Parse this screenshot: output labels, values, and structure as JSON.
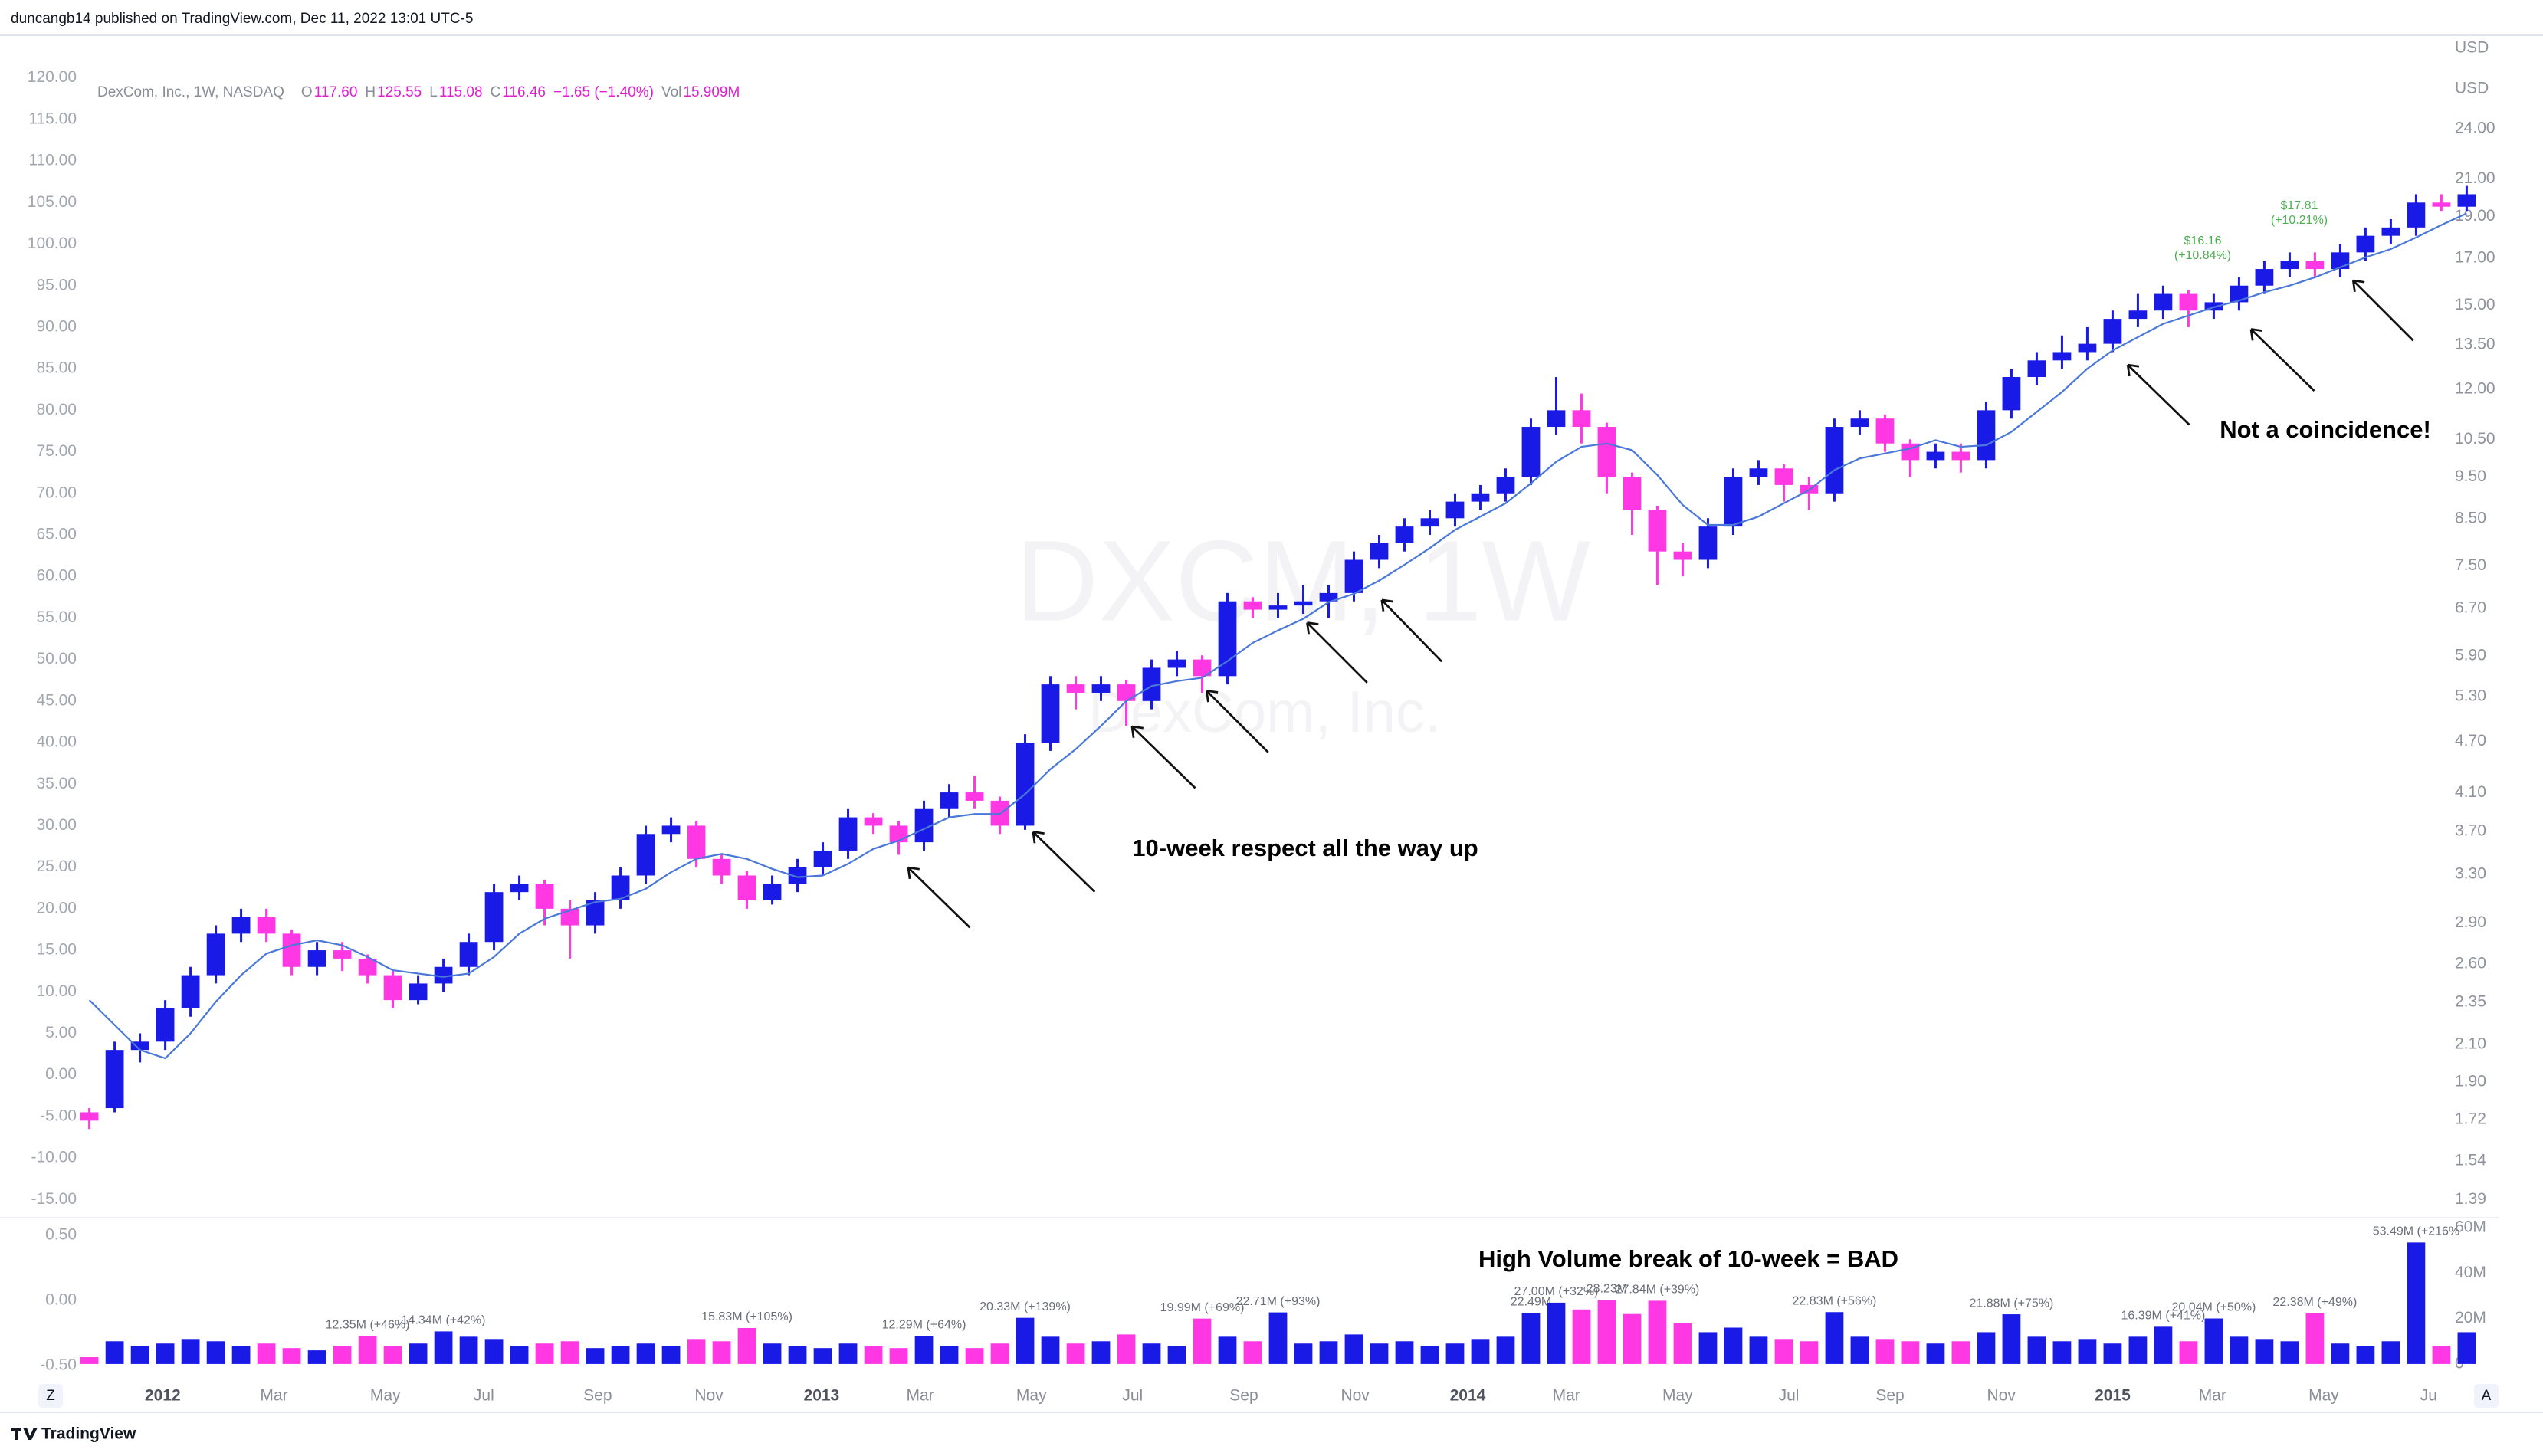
{
  "header": {
    "text": "duncangb14 published on TradingView.com, Dec 11, 2022 13:01 UTC-5"
  },
  "footer": {
    "brand": "TradingView"
  },
  "controls": [
    "Z",
    "A"
  ],
  "chart_data": [
    {
      "type": "candlestick",
      "title": "DexCom, Inc., 1W, NASDAQ",
      "legend": [
        {
          "key": "O",
          "text": "117.60"
        },
        {
          "key": "H",
          "text": "125.55"
        },
        {
          "key": "L",
          "text": "115.08"
        },
        {
          "key": "C",
          "text": "116.46"
        },
        {
          "text": "−1.65 (−1.40%)"
        },
        {
          "key": "Vol",
          "text": "15.909M"
        }
      ],
      "watermark": [
        "DXCM, 1W",
        "DexCom, Inc."
      ],
      "annotations": [
        "10-week respect all the way up",
        "Not a coincidence!"
      ],
      "price_labels": [
        {
          "text": "$16.16",
          "sub": "(+10.84%)"
        },
        {
          "text": "$17.81",
          "sub": "(+10.21%)"
        }
      ],
      "y2_unit_labels": [
        "USD",
        "USD"
      ],
      "up_color": "#1a1ae6",
      "down_color": "#ff38e4",
      "x": [
        0,
        2,
        4,
        6,
        8,
        10,
        12,
        14,
        16,
        18,
        20,
        22,
        24,
        26,
        28,
        30,
        32,
        34,
        36,
        38,
        40,
        42,
        44,
        46,
        48,
        50,
        52,
        54,
        56,
        58,
        60,
        62,
        64,
        66,
        68,
        70,
        72,
        74,
        76,
        78,
        80,
        82,
        84,
        86,
        88,
        90,
        92,
        94,
        96,
        98,
        100,
        102,
        104,
        106,
        108,
        110,
        112,
        114,
        116,
        118,
        120,
        122,
        124,
        126,
        128,
        130,
        132,
        134,
        136,
        138,
        140,
        142,
        144,
        146,
        148,
        150,
        152,
        154,
        156,
        158,
        160,
        162,
        164,
        166,
        168,
        170,
        172,
        174,
        176,
        178,
        180,
        182,
        184,
        186,
        188
      ],
      "open": [
        -4.5,
        -4,
        3,
        4,
        8,
        12,
        17,
        19,
        17,
        13,
        15,
        14,
        12,
        9,
        11,
        13,
        16,
        22,
        23,
        20,
        18,
        21,
        24,
        29,
        30,
        26,
        24,
        21,
        23,
        25,
        27,
        31,
        30,
        28,
        32,
        34,
        33,
        30,
        40,
        47,
        46,
        47,
        45,
        49,
        50,
        48,
        57,
        56,
        56.5,
        57,
        58,
        62,
        64,
        66,
        67,
        69,
        70,
        72,
        78,
        80,
        78,
        72,
        68,
        63,
        62,
        66,
        72,
        73,
        71,
        70,
        78,
        79,
        76,
        74,
        75,
        74,
        80,
        84,
        86,
        87,
        88,
        91,
        92,
        94,
        92,
        93,
        95,
        97,
        98,
        97,
        99,
        101,
        102,
        105,
        104.5
      ],
      "high": [
        -4,
        4,
        5,
        9,
        13,
        18,
        20,
        20,
        17.5,
        16,
        16,
        14.5,
        12.5,
        12,
        14,
        17,
        23,
        24,
        23.5,
        21,
        22,
        25,
        30,
        31,
        30.5,
        26.5,
        24.5,
        24,
        26,
        28,
        32,
        31.5,
        30.5,
        33,
        35,
        36,
        33.5,
        41,
        48,
        48,
        48,
        47.5,
        50,
        51,
        50.5,
        58,
        57.5,
        58,
        59,
        59,
        63,
        65,
        67,
        68,
        70,
        71,
        73,
        79,
        84,
        82,
        78.5,
        72.5,
        68.5,
        64,
        67,
        73,
        74,
        73.5,
        72,
        79,
        80,
        79.5,
        76.5,
        76,
        76,
        81,
        85,
        87,
        89,
        90,
        92,
        94,
        95,
        94.5,
        94,
        96,
        98,
        99,
        99,
        100,
        102,
        103,
        106,
        106,
        107
      ],
      "low": [
        -6.5,
        -4.5,
        1.5,
        3,
        7,
        11,
        16,
        16,
        12,
        12,
        12.5,
        11,
        8,
        8.5,
        10,
        12,
        15,
        21,
        18,
        14,
        17,
        20,
        23,
        28,
        25,
        23,
        20,
        20.5,
        22,
        24,
        26,
        29,
        26.5,
        27,
        31,
        32,
        29,
        29.5,
        39,
        44,
        45,
        42,
        44,
        48,
        46,
        47,
        55,
        55,
        55.5,
        55,
        57,
        61,
        63,
        65,
        66,
        68,
        69,
        71,
        77,
        76,
        70,
        65,
        59,
        60,
        61,
        65,
        71,
        69,
        68,
        69,
        77,
        75,
        72,
        73,
        72.5,
        73,
        79,
        83,
        85,
        86,
        87,
        90,
        91,
        90,
        91,
        92,
        94,
        96,
        96,
        96,
        98,
        100,
        101,
        104,
        104
      ],
      "close": [
        -5.5,
        3,
        4,
        8,
        12,
        17,
        19,
        17,
        13,
        15,
        14,
        12,
        9,
        11,
        13,
        16,
        22,
        23,
        20,
        18,
        21,
        24,
        29,
        30,
        26,
        24,
        21,
        23,
        25,
        27,
        31,
        30,
        28,
        32,
        34,
        33,
        30,
        40,
        47,
        46,
        47,
        45,
        49,
        50,
        48,
        57,
        56,
        56.5,
        57,
        58,
        62,
        64,
        66,
        67,
        69,
        70,
        72,
        78,
        80,
        78,
        72,
        68,
        63,
        62,
        66,
        72,
        73,
        71,
        70,
        78,
        79,
        76,
        74,
        75,
        74,
        80,
        84,
        86,
        87,
        88,
        91,
        92,
        94,
        92,
        93,
        95,
        97,
        98,
        97,
        99,
        101,
        102,
        105,
        104.5,
        106
      ],
      "ma": {
        "color": "#4a78d8",
        "values": [
          9,
          6,
          3,
          2,
          5,
          8.8,
          12,
          14.6,
          15.6,
          16.2,
          15.6,
          14.2,
          12.6,
          12.2,
          11.8,
          12.2,
          14.2,
          17,
          18.8,
          19.8,
          20.8,
          21.2,
          22.4,
          24.4,
          26,
          26.6,
          26,
          24.8,
          23.8,
          24,
          25.4,
          27.2,
          28.2,
          29.6,
          31,
          31.4,
          31.4,
          33.8,
          36.8,
          39.2,
          42,
          45,
          46.8,
          47.4,
          47.8,
          49.8,
          52,
          53.5,
          54.9,
          56.9,
          57.9,
          59.5,
          61.4,
          63.4,
          65.6,
          67.2,
          68.8,
          71.2,
          73.8,
          75.6,
          76,
          75.2,
          72.2,
          68.6,
          66.2,
          66.2,
          67.2,
          68.8,
          70.4,
          72.8,
          74.2,
          74.8,
          75.4,
          76.4,
          75.6,
          75.8,
          77.4,
          79.8,
          82.2,
          85,
          87.2,
          88.8,
          90.4,
          91.4,
          92.4,
          93.2,
          94.2,
          95,
          96,
          97.2,
          98.4,
          99.4,
          100.8,
          102.3,
          103.7
        ]
      },
      "xlim": [
        -0.4,
        190.4
      ],
      "ylim": [
        -17,
        122
      ],
      "yticks": [
        {
          "value": -15,
          "label": "-15.00"
        },
        {
          "value": -10,
          "label": "-10.00"
        },
        {
          "value": -5,
          "label": "-5.00"
        },
        {
          "value": 0,
          "label": "0.00"
        },
        {
          "value": 5,
          "label": "5.00"
        },
        {
          "value": 10,
          "label": "10.00"
        },
        {
          "value": 15,
          "label": "15.00"
        },
        {
          "value": 20,
          "label": "20.00"
        },
        {
          "value": 25,
          "label": "25.00"
        },
        {
          "value": 30,
          "label": "30.00"
        },
        {
          "value": 35,
          "label": "35.00"
        },
        {
          "value": 40,
          "label": "40.00"
        },
        {
          "value": 45,
          "label": "45.00"
        },
        {
          "value": 50,
          "label": "50.00"
        },
        {
          "value": 55,
          "label": "55.00"
        },
        {
          "value": 60,
          "label": "60.00"
        },
        {
          "value": 65,
          "label": "65.00"
        },
        {
          "value": 70,
          "label": "70.00"
        },
        {
          "value": 75,
          "label": "75.00"
        },
        {
          "value": 80,
          "label": "80.00"
        },
        {
          "value": 85,
          "label": "85.00"
        },
        {
          "value": 90,
          "label": "90.00"
        },
        {
          "value": 95,
          "label": "95.00"
        },
        {
          "value": 100,
          "label": "100.00"
        },
        {
          "value": 105,
          "label": "105.00"
        },
        {
          "value": 110,
          "label": "110.00"
        },
        {
          "value": 115,
          "label": "115.00"
        },
        {
          "value": 120,
          "label": "120.00"
        }
      ],
      "y2_log": true,
      "y2lim": [
        1.33,
        28.7
      ],
      "y2ticks": [
        {
          "value": 24,
          "label": "24.00"
        },
        {
          "value": 21,
          "label": "21.00"
        },
        {
          "value": 19,
          "label": "19.00"
        },
        {
          "value": 17,
          "label": "17.00"
        },
        {
          "value": 15,
          "label": "15.00"
        },
        {
          "value": 13.5,
          "label": "13.50"
        },
        {
          "value": 12,
          "label": "12.00"
        },
        {
          "value": 10.5,
          "label": "10.50"
        },
        {
          "value": 9.5,
          "label": "9.50"
        },
        {
          "value": 8.5,
          "label": "8.50"
        },
        {
          "value": 7.5,
          "label": "7.50"
        },
        {
          "value": 6.7,
          "label": "6.70"
        },
        {
          "value": 5.9,
          "label": "5.90"
        },
        {
          "value": 5.3,
          "label": "5.30"
        },
        {
          "value": 4.7,
          "label": "4.70"
        },
        {
          "value": 4.1,
          "label": "4.10"
        },
        {
          "value": 3.7,
          "label": "3.70"
        },
        {
          "value": 3.3,
          "label": "3.30"
        },
        {
          "value": 2.9,
          "label": "2.90"
        },
        {
          "value": 2.6,
          "label": "2.60"
        },
        {
          "value": 2.35,
          "label": "2.35"
        },
        {
          "value": 2.1,
          "label": "2.10"
        },
        {
          "value": 1.9,
          "label": "1.90"
        },
        {
          "value": 1.72,
          "label": "1.72"
        },
        {
          "value": 1.54,
          "label": "1.54"
        },
        {
          "value": 1.39,
          "label": "1.39"
        }
      ]
    },
    {
      "type": "bar",
      "axis": "y2",
      "annotation": "High Volume break of 10-week = BAD",
      "values": [
        3,
        10,
        8,
        9,
        11,
        10,
        8,
        9,
        7,
        6,
        8,
        12.35,
        8,
        9,
        14.34,
        12,
        11,
        8,
        9,
        10,
        7,
        8,
        9,
        8,
        11,
        10,
        15.83,
        9,
        8,
        7,
        9,
        8,
        7,
        12.29,
        8,
        7,
        9,
        20.33,
        12,
        9,
        10,
        13,
        9,
        8,
        19.99,
        12,
        10,
        22.71,
        9,
        10,
        13,
        9,
        10,
        8,
        9,
        11,
        12,
        22.49,
        27,
        24,
        28.23,
        22,
        27.84,
        18,
        14,
        16,
        12,
        11,
        10,
        22.83,
        12,
        11,
        10,
        9,
        10,
        14,
        21.88,
        12,
        10,
        11,
        9,
        12,
        16.39,
        10,
        20.04,
        12,
        11,
        10,
        22.38,
        9,
        8,
        10,
        53.49,
        8,
        14
      ],
      "value_labels": [
        null,
        null,
        null,
        null,
        null,
        null,
        null,
        null,
        null,
        null,
        null,
        "12.35M (+46%)",
        null,
        null,
        "14.34M (+42%)",
        null,
        null,
        null,
        null,
        null,
        null,
        null,
        null,
        null,
        null,
        null,
        "15.83M (+105%)",
        null,
        null,
        null,
        null,
        null,
        null,
        "12.29M (+64%)",
        null,
        null,
        null,
        "20.33M (+139%)",
        null,
        null,
        null,
        null,
        null,
        null,
        "19.99M (+69%)",
        null,
        null,
        "22.71M (+93%)",
        null,
        null,
        null,
        null,
        null,
        null,
        null,
        null,
        null,
        "22.49M",
        "27.00M (+32%)",
        null,
        "28.23M",
        null,
        "27.84M (+39%)",
        null,
        null,
        null,
        null,
        null,
        null,
        "22.83M (+56%)",
        null,
        null,
        null,
        null,
        null,
        null,
        "21.88M (+75%)",
        null,
        null,
        null,
        null,
        null,
        "16.39M (+41%)",
        null,
        "20.04M (+50%)",
        null,
        null,
        null,
        "22.38M (+49%)",
        null,
        null,
        null,
        "53.49M (+216%",
        null,
        null
      ],
      "xlim": [
        -0.4,
        190.4
      ],
      "xticks": [
        {
          "value": 5.8,
          "label": "2012"
        },
        {
          "value": 14.6,
          "label": "Mar"
        },
        {
          "value": 23.4,
          "label": "May"
        },
        {
          "value": 31.2,
          "label": "Jul"
        },
        {
          "value": 40.2,
          "label": "Sep"
        },
        {
          "value": 49,
          "label": "Nov"
        },
        {
          "value": 57.9,
          "label": "2013"
        },
        {
          "value": 65.7,
          "label": "Mar"
        },
        {
          "value": 74.5,
          "label": "May"
        },
        {
          "value": 82.5,
          "label": "Jul"
        },
        {
          "value": 91.3,
          "label": "Sep"
        },
        {
          "value": 100.1,
          "label": "Nov"
        },
        {
          "value": 109,
          "label": "2014"
        },
        {
          "value": 116.8,
          "label": "Mar"
        },
        {
          "value": 125.6,
          "label": "May"
        },
        {
          "value": 134.4,
          "label": "Jul"
        },
        {
          "value": 142.4,
          "label": "Sep"
        },
        {
          "value": 151.2,
          "label": "Nov"
        },
        {
          "value": 160,
          "label": "2015"
        },
        {
          "value": 167.9,
          "label": "Mar"
        },
        {
          "value": 176.7,
          "label": "May"
        },
        {
          "value": 185,
          "label": "Ju"
        }
      ],
      "ylim": [
        -0.594,
        0.618
      ],
      "yticks": [
        {
          "value": 0.5,
          "label": "0.50"
        },
        {
          "value": 0,
          "label": "0.00"
        },
        {
          "value": -0.5,
          "label": "-0.50"
        }
      ],
      "y2lim": [
        -6.1,
        63.4
      ],
      "y2ticks": [
        0,
        {
          "value": 20,
          "label": "20M"
        },
        {
          "value": 40,
          "label": "40M"
        },
        {
          "value": 60,
          "label": "60M"
        }
      ]
    }
  ]
}
